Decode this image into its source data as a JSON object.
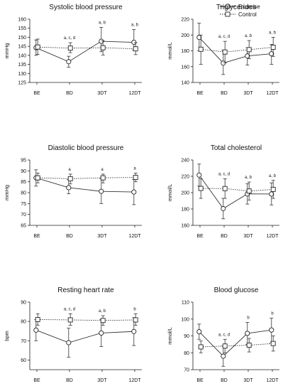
{
  "legend": [
    {
      "name": "Exercise",
      "marker": "circle",
      "dash": "solid"
    },
    {
      "name": "Control",
      "marker": "square",
      "dash": "dotted"
    }
  ],
  "chart_data": [
    {
      "type": "line",
      "title": "Systolic blood pressure",
      "ylabel": "mmHg",
      "categories": [
        "BE",
        "BD",
        "3DT",
        "12DT"
      ],
      "ylim": [
        125,
        160
      ],
      "yticks": [
        125,
        130,
        135,
        140,
        145,
        150,
        155,
        160
      ],
      "series": [
        {
          "name": "Exercise",
          "values": [
            144.2,
            136.5,
            147.8,
            147.2
          ],
          "err_low": [
            140.0,
            133.5,
            142.0,
            143.0
          ],
          "err_high": [
            148.5,
            139.5,
            155.5,
            154.3
          ]
        },
        {
          "name": "Control",
          "values": [
            144.6,
            144.0,
            144.2,
            143.6
          ],
          "err_low": [
            140.5,
            141.5,
            140.2,
            140.4
          ],
          "err_high": [
            149.0,
            147.0,
            148.0,
            147.0
          ]
        }
      ],
      "annotations": [
        "",
        "a, c, d",
        "a, b",
        "a, b"
      ]
    },
    {
      "type": "line",
      "title": "Triglycerides",
      "ylabel": "mmol/L",
      "categories": [
        "BE",
        "BD",
        "3DT",
        "12DT"
      ],
      "ylim": [
        140,
        220
      ],
      "yticks": [
        140,
        160,
        180,
        200,
        220
      ],
      "series": [
        {
          "name": "Exercise",
          "values": [
            197,
            164.5,
            173.5,
            176.3
          ],
          "err_low": [
            180,
            150,
            162,
            163
          ],
          "err_high": [
            215,
            181,
            184,
            188
          ]
        },
        {
          "name": "Control",
          "values": [
            182,
            178.5,
            181.5,
            184.5
          ],
          "err_low": [
            163,
            165,
            170,
            173
          ],
          "err_high": [
            200,
            192,
            193,
            197
          ]
        }
      ],
      "annotations": [
        "",
        "a, c, d",
        "a, b",
        "a, b"
      ]
    },
    {
      "type": "line",
      "title": "Diastolic blood pressure",
      "ylabel": "mmHg",
      "categories": [
        "BE",
        "BD",
        "3DT",
        "12DT"
      ],
      "ylim": [
        65,
        95
      ],
      "yticks": [
        65,
        70,
        75,
        80,
        85,
        90,
        95
      ],
      "series": [
        {
          "name": "Exercise",
          "values": [
            86.8,
            82.3,
            80.6,
            80.3
          ],
          "err_low": [
            83,
            79.5,
            75,
            74.5
          ],
          "err_high": [
            90.5,
            86,
            86.5,
            86
          ]
        },
        {
          "name": "Control",
          "values": [
            86.8,
            86.4,
            86.8,
            87.0
          ],
          "err_low": [
            84.5,
            84,
            84.5,
            85
          ],
          "err_high": [
            89,
            88.5,
            88.5,
            89
          ]
        }
      ],
      "annotations": [
        "",
        "a",
        "a",
        "a"
      ]
    },
    {
      "type": "line",
      "title": "Total cholesterol",
      "ylabel": "mmol/L",
      "categories": [
        "BE",
        "BD",
        "3DT",
        "12DT"
      ],
      "ylim": [
        160,
        240
      ],
      "yticks": [
        160,
        180,
        200,
        220,
        240
      ],
      "series": [
        {
          "name": "Exercise",
          "values": [
            221.5,
            180.5,
            198.5,
            198.3
          ],
          "err_low": [
            208,
            168,
            186,
            185
          ],
          "err_high": [
            235,
            193,
            211,
            212
          ]
        },
        {
          "name": "Control",
          "values": [
            205.2,
            205.0,
            202.0,
            204.0
          ],
          "err_low": [
            193,
            193,
            191,
            193
          ],
          "err_high": [
            217,
            217,
            213,
            215
          ]
        }
      ],
      "annotations": [
        "",
        "a, c, d",
        "a, b",
        "a, b"
      ]
    },
    {
      "type": "line",
      "title": "Resting heart rate",
      "ylabel": "bpm",
      "categories": [
        "BE",
        "BD",
        "3DT",
        "12DT"
      ],
      "ylim": [
        55,
        90
      ],
      "yticks": [
        60,
        70,
        80,
        90
      ],
      "series": [
        {
          "name": "Exercise",
          "values": [
            75.5,
            69.0,
            74.0,
            74.8
          ],
          "err_low": [
            70,
            61.5,
            67,
            67.5
          ],
          "err_high": [
            81,
            76.5,
            81,
            82
          ]
        },
        {
          "name": "Control",
          "values": [
            81.0,
            80.8,
            80.5,
            80.8
          ],
          "err_low": [
            78,
            78,
            78,
            78
          ],
          "err_high": [
            84,
            84,
            83,
            84
          ]
        }
      ],
      "annotations": [
        "",
        "a, c, d",
        "a, b",
        "b"
      ]
    },
    {
      "type": "line",
      "title": "Blood glucose",
      "ylabel": "mmol/L",
      "categories": [
        "BE",
        "BD",
        "3DT",
        "12DT"
      ],
      "ylim": [
        70,
        110
      ],
      "yticks": [
        70,
        80,
        90,
        100,
        110
      ],
      "series": [
        {
          "name": "Exercise",
          "values": [
            92.5,
            78.0,
            91.5,
            93.5
          ],
          "err_low": [
            88,
            72,
            85,
            86
          ],
          "err_high": [
            97,
            84,
            98,
            100.5
          ]
        },
        {
          "name": "Control",
          "values": [
            83.5,
            84.0,
            84.5,
            85.5
          ],
          "err_low": [
            80,
            80,
            80.5,
            81
          ],
          "err_high": [
            87,
            88,
            88.5,
            90
          ]
        }
      ],
      "annotations": [
        "",
        "a, c, d",
        "b",
        "b"
      ]
    }
  ]
}
